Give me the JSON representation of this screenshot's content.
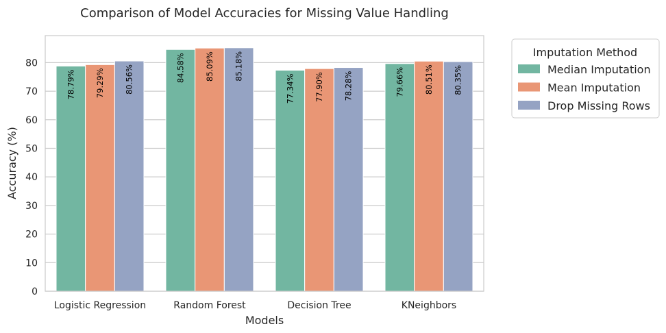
{
  "chart_data": {
    "type": "bar",
    "title": "Comparison of Model Accuracies for Missing Value Handling",
    "xlabel": "Models",
    "ylabel": "Accuracy (%)",
    "categories": [
      "Logistic Regression",
      "Random Forest",
      "Decision Tree",
      "KNeighbors"
    ],
    "series": [
      {
        "name": "Median Imputation",
        "color": "#72b6a1",
        "values": [
          78.79,
          84.58,
          77.34,
          79.66
        ],
        "labels": [
          "78.79%",
          "84.58%",
          "77.34%",
          "79.66%"
        ]
      },
      {
        "name": "Mean Imputation",
        "color": "#e99675",
        "values": [
          79.29,
          85.09,
          77.9,
          80.51
        ],
        "labels": [
          "79.29%",
          "85.09%",
          "77.90%",
          "80.51%"
        ]
      },
      {
        "name": "Drop Missing Rows",
        "color": "#95a3c3",
        "values": [
          80.56,
          85.18,
          78.28,
          80.35
        ],
        "labels": [
          "80.56%",
          "85.18%",
          "78.28%",
          "80.35%"
        ]
      }
    ],
    "ylim": [
      0,
      89.44
    ],
    "yticks": [
      "0",
      "10",
      "20",
      "30",
      "40",
      "50",
      "60",
      "70",
      "80"
    ],
    "grid": true,
    "legend": {
      "title": "Imputation Method",
      "placement": "outside-right"
    }
  }
}
